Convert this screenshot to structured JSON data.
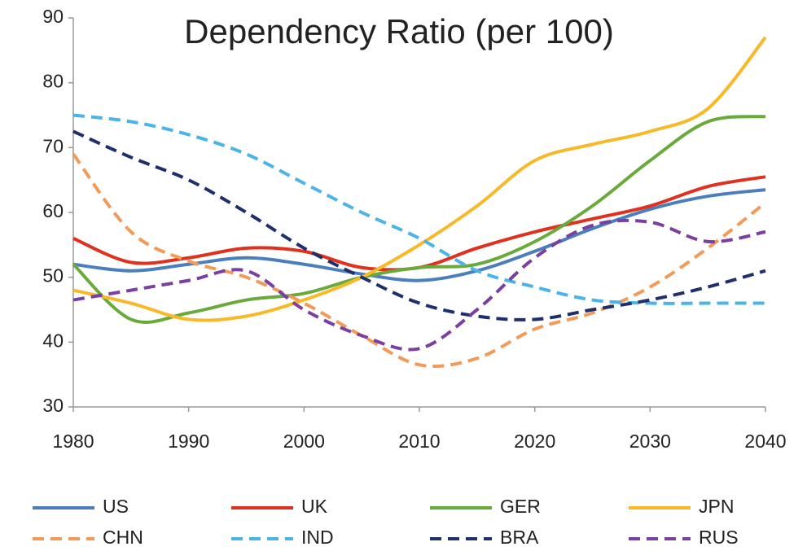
{
  "chart_data": {
    "type": "line",
    "title": "Dependency Ratio (per 100)",
    "x": [
      1980,
      1985,
      1990,
      1995,
      2000,
      2005,
      2010,
      2015,
      2020,
      2025,
      2030,
      2035,
      2040
    ],
    "xlim": [
      1980,
      2040
    ],
    "xticks": [
      1980,
      1990,
      2000,
      2010,
      2020,
      2030,
      2040
    ],
    "ylim": [
      30,
      90
    ],
    "yticks": [
      30,
      40,
      50,
      60,
      70,
      80,
      90
    ],
    "grid": false,
    "legend": "bottom",
    "series": [
      {
        "name": "US",
        "color": "#4a7ebf",
        "line_style": "solid",
        "values": [
          52,
          51,
          52,
          53,
          52,
          50.5,
          49.5,
          51,
          54,
          57.5,
          60.5,
          62.5,
          63.5
        ]
      },
      {
        "name": "UK",
        "color": "#e0301e",
        "line_style": "solid",
        "values": [
          56,
          52.3,
          53,
          54.5,
          54,
          51.5,
          51.5,
          54.5,
          57,
          59,
          61,
          64,
          65.5
        ]
      },
      {
        "name": "GER",
        "color": "#6aaa3a",
        "line_style": "solid",
        "values": [
          52,
          43.5,
          44.5,
          46.5,
          47.5,
          50,
          51.5,
          52,
          55.5,
          61,
          68,
          74,
          74.8
        ]
      },
      {
        "name": "JPN",
        "color": "#f7b928",
        "line_style": "solid",
        "values": [
          48,
          46,
          43.5,
          44,
          46.5,
          50,
          55,
          61,
          68,
          70.5,
          72.5,
          76,
          87
        ]
      },
      {
        "name": "CHN",
        "color": "#f39a58",
        "line_style": "dashed",
        "values": [
          69,
          57,
          52.5,
          50,
          46,
          41,
          36.5,
          37.5,
          42,
          44.5,
          48.5,
          54.5,
          61.5
        ]
      },
      {
        "name": "IND",
        "color": "#4ab4e8",
        "line_style": "dashed",
        "values": [
          75,
          74,
          72,
          69,
          64.5,
          60,
          56,
          51,
          48.5,
          46.5,
          46,
          46,
          46
        ]
      },
      {
        "name": "BRA",
        "color": "#1f2f6b",
        "line_style": "dashed",
        "values": [
          72.5,
          68.5,
          65,
          60,
          54.5,
          50,
          46,
          44,
          43.5,
          45,
          46.5,
          48.5,
          51
        ]
      },
      {
        "name": "RUS",
        "color": "#7a3fa0",
        "line_style": "dashed",
        "values": [
          46.5,
          48,
          49.5,
          51,
          45,
          41,
          39,
          45,
          53,
          58,
          58.5,
          55.5,
          57
        ]
      }
    ]
  }
}
